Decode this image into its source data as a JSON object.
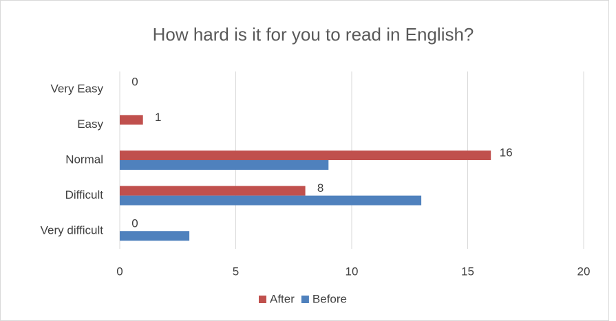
{
  "chart_data": {
    "type": "barh",
    "title": "How hard is it for you to read in English?",
    "categories": [
      "Very Easy",
      "Easy",
      "Normal",
      "Difficult",
      "Very difficult"
    ],
    "series": [
      {
        "name": "After",
        "color": "#c0504d",
        "values": [
          0,
          1,
          16,
          8,
          0
        ],
        "data_labels": true
      },
      {
        "name": "Before",
        "color": "#4f81bd",
        "values": [
          0,
          0,
          9,
          13,
          3
        ],
        "data_labels": false
      }
    ],
    "xlim": [
      0,
      20
    ],
    "xticks": [
      0,
      5,
      10,
      15,
      20
    ],
    "grid": true,
    "legend": "bottom"
  }
}
